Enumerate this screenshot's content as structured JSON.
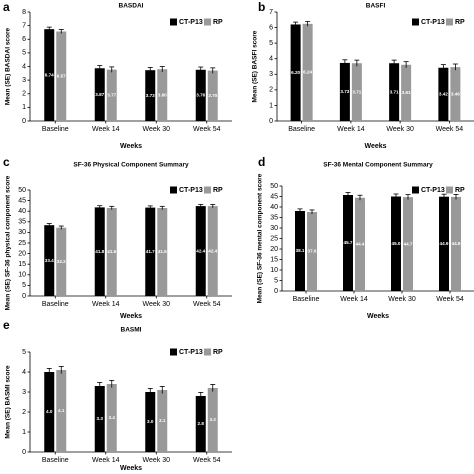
{
  "legend": [
    {
      "name": "CT-P13",
      "color": "#000000"
    },
    {
      "name": "RP",
      "color": "#999999"
    }
  ],
  "chart_data": [
    {
      "panel": "a",
      "type": "bar",
      "title": "BASDAI",
      "xlabel": "Weeks",
      "ylabel": "Mean (SE) BASDAI score",
      "ylim": [
        0,
        8
      ],
      "yticks": [
        0,
        1,
        2,
        3,
        4,
        5,
        6,
        7,
        8
      ],
      "categories": [
        "Baseline",
        "Week 14",
        "Week 30",
        "Week 54"
      ],
      "series": [
        {
          "name": "CT-P13",
          "values": [
            6.74,
            3.87,
            3.73,
            3.76
          ],
          "errors": [
            0.15,
            0.2,
            0.2,
            0.2
          ],
          "labels": [
            "6.74",
            "3.87",
            "3.73",
            "3.76"
          ]
        },
        {
          "name": "RP",
          "values": [
            6.57,
            3.77,
            3.8,
            3.7
          ],
          "errors": [
            0.15,
            0.2,
            0.2,
            0.2
          ],
          "labels": [
            "6.57",
            "3.77",
            "3.80",
            "3.70"
          ]
        }
      ],
      "legend_position": "top-right"
    },
    {
      "panel": "b",
      "type": "bar",
      "title": "BASFI",
      "xlabel": "Weeks",
      "ylabel": "Mean (SE) BASFI score",
      "ylim": [
        0,
        7
      ],
      "yticks": [
        0,
        1,
        2,
        3,
        4,
        5,
        6,
        7
      ],
      "categories": [
        "Baseline",
        "Week 14",
        "Week 30",
        "Week 54"
      ],
      "series": [
        {
          "name": "CT-P13",
          "values": [
            6.2,
            3.73,
            3.71,
            3.42
          ],
          "errors": [
            0.15,
            0.2,
            0.2,
            0.2
          ],
          "labels": [
            "6.20",
            "3.73",
            "3.71",
            "3.42"
          ]
        },
        {
          "name": "RP",
          "values": [
            6.24,
            3.71,
            3.61,
            3.46
          ],
          "errors": [
            0.15,
            0.2,
            0.2,
            0.2
          ],
          "labels": [
            "6.24",
            "3.71",
            "3.61",
            "3.46"
          ]
        }
      ],
      "legend_position": "top-right"
    },
    {
      "panel": "c",
      "type": "bar",
      "title": "SF-36 Physical Component Summary",
      "xlabel": "Weeks",
      "ylabel": "Mean (SE) SF-36 physical component score",
      "ylim": [
        0,
        50
      ],
      "yticks": [
        0,
        5,
        10,
        15,
        20,
        25,
        30,
        35,
        40,
        45,
        50
      ],
      "categories": [
        "Baseline",
        "Week 14",
        "Week 30",
        "Week 54"
      ],
      "series": [
        {
          "name": "CT-P13",
          "values": [
            33.4,
            41.8,
            41.7,
            42.4
          ],
          "errors": [
            0.8,
            0.8,
            0.8,
            0.8
          ],
          "labels": [
            "33.4",
            "41.8",
            "41.7",
            "42.4"
          ]
        },
        {
          "name": "RP",
          "values": [
            32.2,
            41.5,
            41.5,
            42.4
          ],
          "errors": [
            0.8,
            0.8,
            0.8,
            0.8
          ],
          "labels": [
            "32.2",
            "41.5",
            "41.5",
            "42.4"
          ]
        }
      ],
      "legend_position": "top-right"
    },
    {
      "panel": "d",
      "type": "bar",
      "title": "SF-36 Mental Component Summary",
      "xlabel": "Weeks",
      "ylabel": "Mean (SE) SF-36 mental component score",
      "ylim": [
        0,
        50
      ],
      "yticks": [
        0,
        5,
        10,
        15,
        20,
        25,
        30,
        35,
        40,
        45,
        50
      ],
      "categories": [
        "Baseline",
        "Week 14",
        "Week 30",
        "Week 54"
      ],
      "series": [
        {
          "name": "CT-P13",
          "values": [
            38.1,
            45.7,
            45.0,
            44.9
          ],
          "errors": [
            1.0,
            1.2,
            1.2,
            1.2
          ],
          "labels": [
            "38.1",
            "45.7",
            "45.0",
            "44.9"
          ]
        },
        {
          "name": "RP",
          "values": [
            37.6,
            44.4,
            44.7,
            44.8
          ],
          "errors": [
            1.0,
            1.2,
            1.2,
            1.2
          ],
          "labels": [
            "37.6",
            "44.4",
            "44.7",
            "44.8"
          ]
        }
      ],
      "legend_position": "top-right"
    },
    {
      "panel": "e",
      "type": "bar",
      "title": "BASMI",
      "xlabel": "Weeks",
      "ylabel": "Mean (SE) BASMI score",
      "ylim": [
        0,
        5
      ],
      "yticks": [
        0,
        1,
        2,
        3,
        4,
        5
      ],
      "categories": [
        "Baseline",
        "Week 14",
        "Week 30",
        "Week 54"
      ],
      "series": [
        {
          "name": "CT-P13",
          "values": [
            4.0,
            3.3,
            3.0,
            2.8
          ],
          "errors": [
            0.18,
            0.18,
            0.18,
            0.18
          ],
          "labels": [
            "4.0",
            "3.3",
            "3.0",
            "2.8"
          ]
        },
        {
          "name": "RP",
          "values": [
            4.1,
            3.4,
            3.1,
            3.2
          ],
          "errors": [
            0.18,
            0.18,
            0.18,
            0.18
          ],
          "labels": [
            "4.1",
            "3.4",
            "3.1",
            "3.2"
          ]
        }
      ],
      "legend_position": "top-right"
    }
  ]
}
